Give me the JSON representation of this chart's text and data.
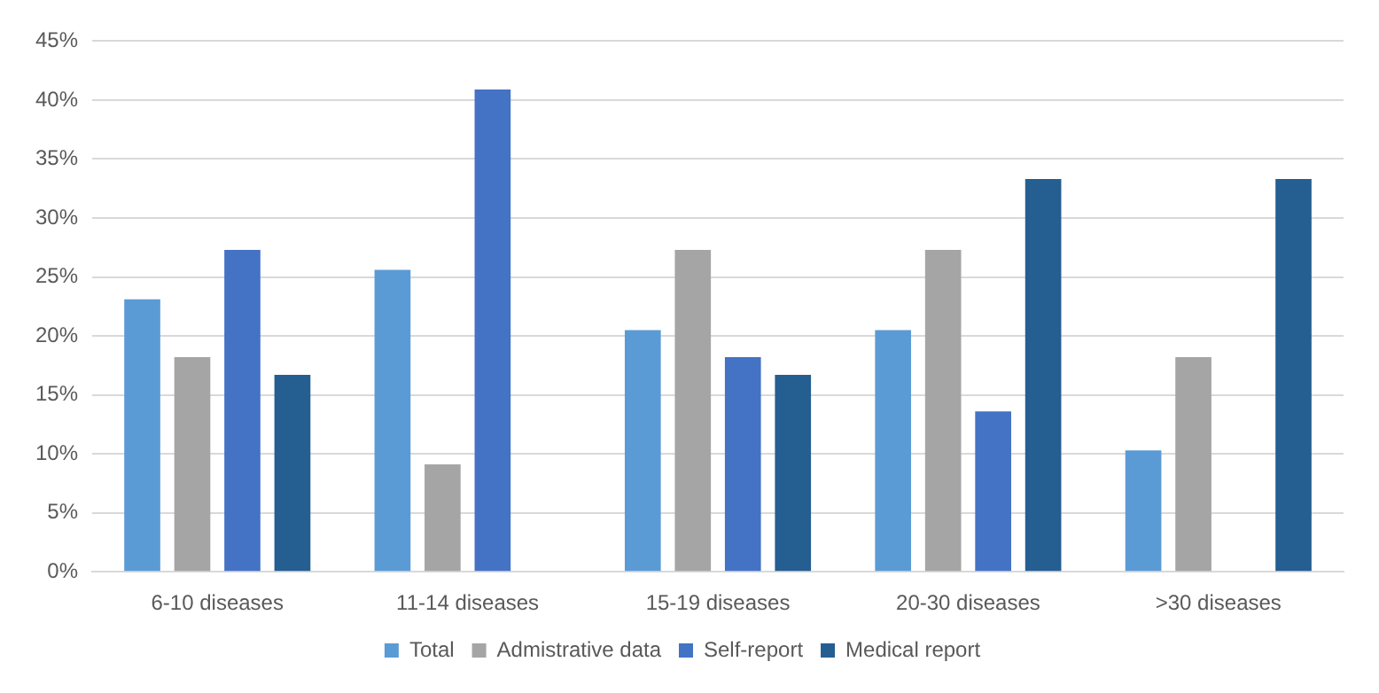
{
  "chart_data": {
    "type": "bar",
    "categories": [
      "6-10 diseases",
      "11-14 diseases",
      "15-19 diseases",
      "20-30 diseases",
      ">30 diseases"
    ],
    "series": [
      {
        "name": "Total",
        "color": "#5b9bd5",
        "values": [
          23.1,
          25.6,
          20.5,
          20.5,
          10.3
        ]
      },
      {
        "name": "Admistrative data",
        "color": "#a5a5a5",
        "values": [
          18.2,
          9.1,
          27.3,
          27.3,
          18.2
        ]
      },
      {
        "name": "Self-report",
        "color": "#4472c4",
        "values": [
          27.3,
          40.9,
          18.2,
          13.6,
          0
        ]
      },
      {
        "name": "Medical report",
        "color": "#255e91",
        "values": [
          16.7,
          0,
          16.7,
          33.3,
          33.3
        ]
      }
    ],
    "ylim": [
      0,
      45
    ],
    "yticks": [
      {
        "value": 0,
        "label": "0%"
      },
      {
        "value": 5,
        "label": "5%"
      },
      {
        "value": 10,
        "label": "10%"
      },
      {
        "value": 15,
        "label": "15%"
      },
      {
        "value": 20,
        "label": "20%"
      },
      {
        "value": 25,
        "label": "25%"
      },
      {
        "value": 30,
        "label": "30%"
      },
      {
        "value": 35,
        "label": "35%"
      },
      {
        "value": 40,
        "label": "40%"
      },
      {
        "value": 45,
        "label": "45%"
      }
    ],
    "grid": "y",
    "legend": "bottom"
  }
}
